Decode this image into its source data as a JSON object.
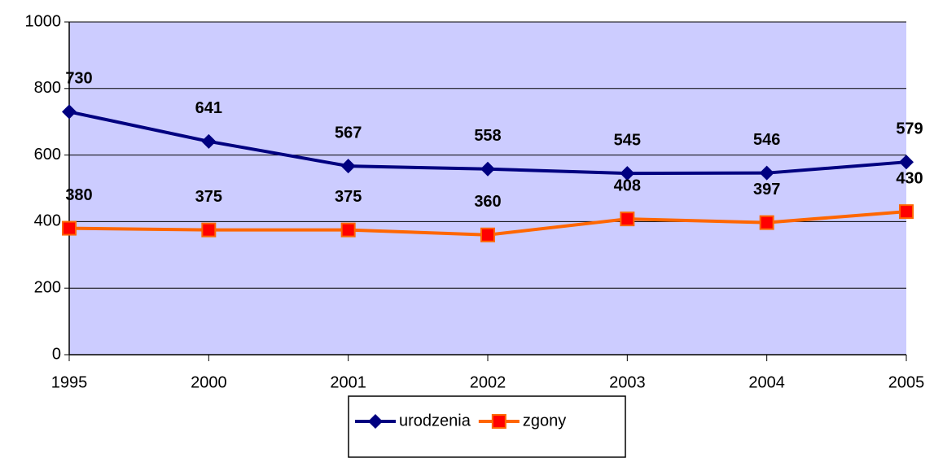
{
  "chart_data": {
    "type": "line",
    "categories": [
      "1995",
      "2000",
      "2001",
      "2002",
      "2003",
      "2004",
      "2005"
    ],
    "series": [
      {
        "name": "urodzenia",
        "color": "#000080",
        "marker": "diamond",
        "marker_color": "#000080",
        "values": [
          730,
          641,
          567,
          558,
          545,
          546,
          579
        ]
      },
      {
        "name": "zgony",
        "color": "#ff6600",
        "marker": "square",
        "marker_color": "#ff0000",
        "values": [
          380,
          375,
          375,
          360,
          408,
          397,
          430
        ]
      }
    ],
    "ylim": [
      0,
      1000
    ],
    "yticks": [
      0,
      200,
      400,
      600,
      800,
      1000
    ],
    "grid": true,
    "plot_background": "#ccccff",
    "legend": "bottom"
  }
}
